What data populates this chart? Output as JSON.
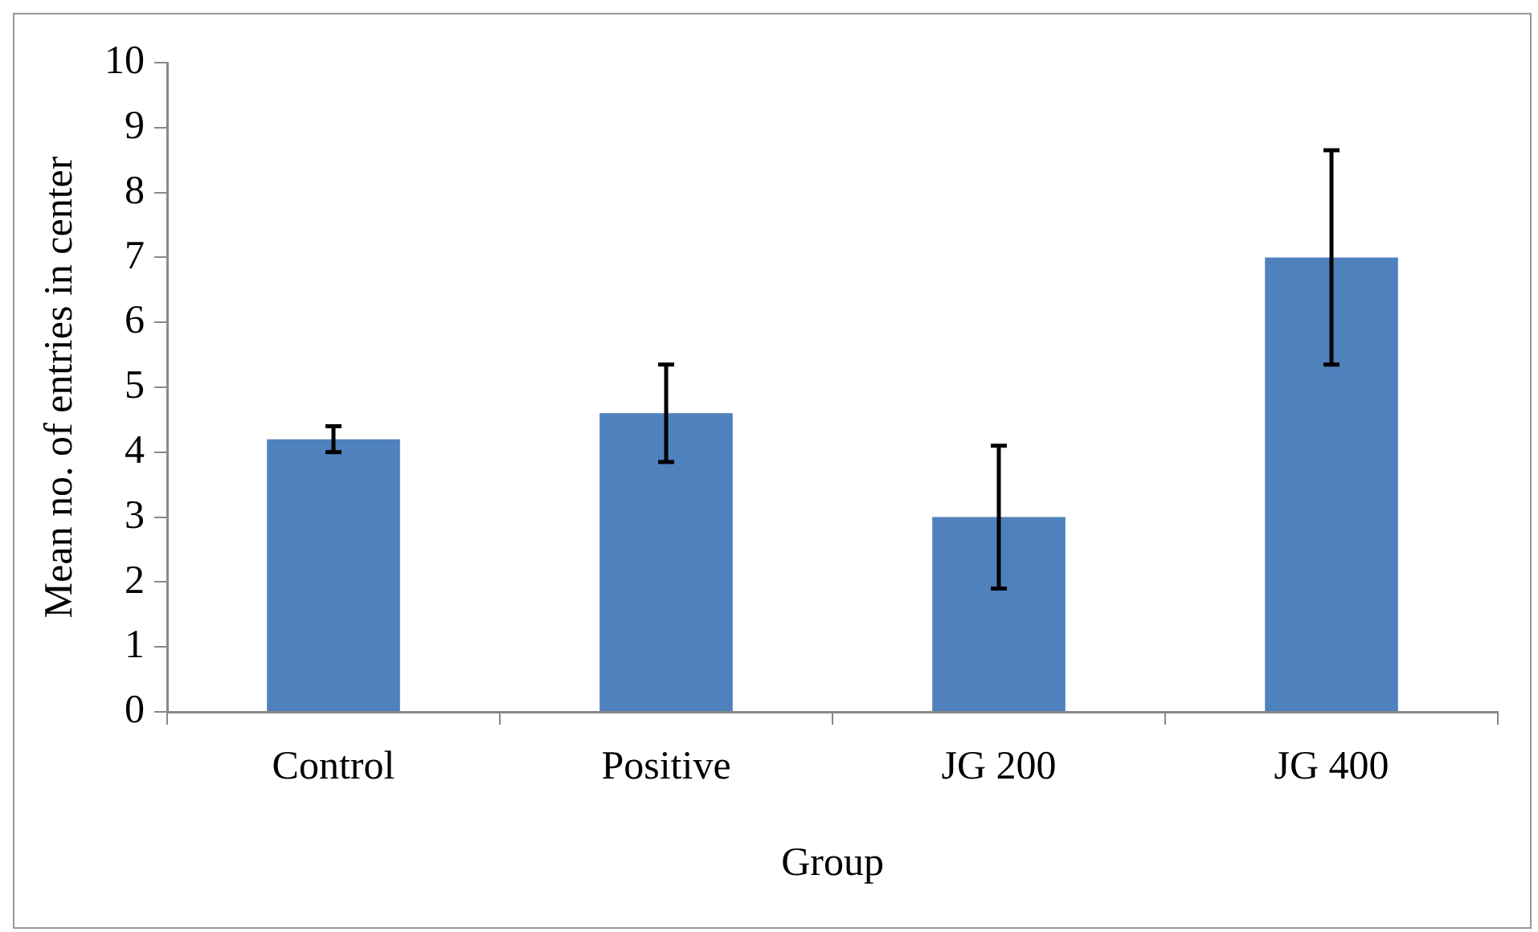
{
  "chart_data": {
    "type": "bar",
    "xlabel": "Group",
    "ylabel": "Mean no. of entries in center",
    "categories": [
      "Control",
      "Positive",
      "JG 200",
      "JG 400"
    ],
    "values": [
      4.2,
      4.6,
      3.0,
      7.0
    ],
    "errors": [
      0.2,
      0.75,
      1.1,
      1.65
    ],
    "color": "#4f81bd",
    "ylim": [
      0,
      10
    ],
    "yticks": [
      0,
      1,
      2,
      3,
      4,
      5,
      6,
      7,
      8,
      9,
      10
    ],
    "grid": false,
    "legend": false
  }
}
